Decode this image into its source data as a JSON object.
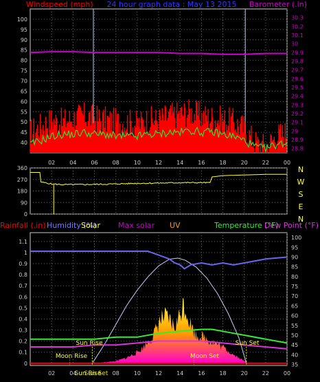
{
  "header": {
    "windspeed_label": "Windspeed (mph)",
    "title": "24 hour graph data : May 13 2015",
    "barometer_label": "Barometer (.in)"
  },
  "bottom_header": {
    "rainfall": "Rainfall (.in)",
    "humidity": "Humidity (%)",
    "solar": "Solar",
    "max_solar": "Max solar",
    "uv": "UV",
    "temperature": "Temperature (°F)",
    "dew_point": "Dew Point (°F)"
  },
  "compass": [
    "N",
    "W",
    "S",
    "E",
    "N"
  ],
  "annotations": {
    "sun_rise": "Sun Rise",
    "sun_set": "Sun Set",
    "moon_rise": "Moon Rise",
    "moon_set": "Moon Set",
    "sun_rise_x": "Sun Rise",
    "sun_set_x": "Sun Set"
  },
  "colors": {
    "wind_gust": "#ff0000",
    "wind_avg": "#33dd33",
    "barometer": "#cc00cc",
    "direction": "#ffff33",
    "humidity": "#6666ee",
    "max_solar": "#ccccff",
    "temperature": "#33ee33",
    "dew_point": "#dd33dd",
    "rainfall": "#ff0000"
  },
  "chart_data": [
    {
      "type": "line",
      "name": "wind-barometer",
      "x_ticks": [
        "02",
        "04",
        "06",
        "08",
        "10",
        "12",
        "14",
        "16",
        "18",
        "20",
        "22",
        "00"
      ],
      "left_ticks": [
        "40",
        "45",
        "50",
        "55",
        "60",
        "65",
        "70",
        "75",
        "80",
        "85",
        "90",
        "95",
        "100"
      ],
      "right_ticks": [
        "28.8",
        "28.9",
        "29",
        "29.1",
        "29.2",
        "29.3",
        "29.4",
        "29.5",
        "29.6",
        "29.7",
        "29.8",
        "29.9",
        "30",
        "30.1",
        "30.2",
        "30.3"
      ],
      "ylim_left": [
        35,
        105
      ],
      "ylim_right": [
        28.75,
        30.4
      ],
      "xlim": [
        0,
        24
      ],
      "vlines_hours": [
        5.9,
        20.1
      ],
      "series": [
        {
          "key": "gust",
          "points": [
            [
              0,
              45
            ],
            [
              1,
              48
            ],
            [
              2,
              51
            ],
            [
              3,
              50
            ],
            [
              4,
              52
            ],
            [
              5,
              53
            ],
            [
              6,
              52
            ],
            [
              7,
              51
            ],
            [
              8,
              50
            ],
            [
              9,
              50
            ],
            [
              10,
              49
            ],
            [
              11,
              51
            ],
            [
              12,
              51
            ],
            [
              13,
              53
            ],
            [
              14,
              54
            ],
            [
              15,
              55
            ],
            [
              16,
              53
            ],
            [
              17,
              52
            ],
            [
              18,
              51
            ],
            [
              19,
              50
            ],
            [
              20,
              47
            ],
            [
              21,
              40
            ],
            [
              22,
              38
            ],
            [
              23,
              43
            ],
            [
              24,
              45
            ]
          ]
        },
        {
          "key": "avg",
          "points": [
            [
              0,
              39
            ],
            [
              1,
              41
            ],
            [
              2,
              43
            ],
            [
              3,
              44
            ],
            [
              4,
              44
            ],
            [
              5,
              45
            ],
            [
              6,
              44
            ],
            [
              7,
              44
            ],
            [
              8,
              43
            ],
            [
              9,
              43
            ],
            [
              10,
              43
            ],
            [
              11,
              44
            ],
            [
              12,
              44
            ],
            [
              13,
              45
            ],
            [
              14,
              45
            ],
            [
              15,
              46
            ],
            [
              16,
              45
            ],
            [
              17,
              45
            ],
            [
              18,
              44
            ],
            [
              19,
              43
            ],
            [
              20,
              41
            ],
            [
              21,
              38
            ],
            [
              22,
              37
            ],
            [
              23,
              39
            ],
            [
              24,
              40
            ]
          ]
        },
        {
          "key": "baro",
          "points": [
            [
              0,
              29.9
            ],
            [
              2,
              29.91
            ],
            [
              4,
              29.91
            ],
            [
              6,
              29.9
            ],
            [
              8,
              29.9
            ],
            [
              10,
              29.9
            ],
            [
              12,
              29.9
            ],
            [
              14,
              29.89
            ],
            [
              16,
              29.89
            ],
            [
              18,
              29.88
            ],
            [
              20,
              29.88
            ],
            [
              22,
              29.89
            ],
            [
              24,
              29.89
            ]
          ]
        }
      ]
    },
    {
      "type": "line",
      "name": "wind-direction",
      "left_ticks": [
        "0",
        "90",
        "180",
        "270",
        "360"
      ],
      "ylim": [
        0,
        360
      ],
      "xlim": [
        0,
        24
      ],
      "series": [
        {
          "key": "dir",
          "points": [
            [
              0,
              325
            ],
            [
              0.9,
              325
            ],
            [
              1,
              250
            ],
            [
              2,
              235
            ],
            [
              3,
              230
            ],
            [
              4,
              230
            ],
            [
              6,
              232
            ],
            [
              8,
              235
            ],
            [
              10,
              240
            ],
            [
              12,
              242
            ],
            [
              14,
              245
            ],
            [
              16,
              245
            ],
            [
              16.8,
              245
            ],
            [
              17,
              290
            ],
            [
              18,
              300
            ],
            [
              20,
              305
            ],
            [
              22,
              310
            ],
            [
              24,
              310
            ]
          ]
        }
      ]
    },
    {
      "type": "line",
      "name": "solar-temperature",
      "left_ticks": [
        "0",
        "0.1",
        "0.2",
        "0.3",
        "0.4",
        "0.5",
        "0.6",
        "0.7",
        "0.8",
        "0.9",
        "1",
        "1.1"
      ],
      "right_ticks": [
        "35",
        "40",
        "45",
        "50",
        "55",
        "60",
        "65",
        "70",
        "75",
        "80",
        "85",
        "90",
        "95",
        "100"
      ],
      "ylim_left": [
        -0.02,
        1.18
      ],
      "ylim_right": [
        34.5,
        102.5
      ],
      "xlim": [
        0,
        24
      ],
      "sunrise_hour": 5.8,
      "sunset_hour": 20.2,
      "moonrise_hour": 3.7,
      "moonset_hour": 15.3,
      "series": [
        {
          "key": "humidity",
          "points": [
            [
              0,
              93
            ],
            [
              2,
              93
            ],
            [
              4,
              93
            ],
            [
              6,
              93
            ],
            [
              8,
              93
            ],
            [
              10,
              93
            ],
            [
              11,
              93
            ],
            [
              12,
              91
            ],
            [
              13,
              89
            ],
            [
              13.5,
              87
            ],
            [
              14,
              86
            ],
            [
              14.4,
              84
            ],
            [
              15,
              86
            ],
            [
              16,
              87
            ],
            [
              17,
              86
            ],
            [
              18,
              87
            ],
            [
              19,
              86
            ],
            [
              20,
              87
            ],
            [
              22,
              89
            ],
            [
              24,
              90
            ]
          ]
        },
        {
          "key": "max_solar",
          "points": [
            [
              5.8,
              0
            ],
            [
              7,
              0.18
            ],
            [
              8,
              0.35
            ],
            [
              9,
              0.52
            ],
            [
              10,
              0.66
            ],
            [
              11,
              0.78
            ],
            [
              12,
              0.88
            ],
            [
              13,
              0.94
            ],
            [
              13.8,
              0.95
            ],
            [
              14.5,
              0.93
            ],
            [
              15.5,
              0.87
            ],
            [
              16.5,
              0.77
            ],
            [
              17.5,
              0.63
            ],
            [
              18.5,
              0.45
            ],
            [
              19.5,
              0.23
            ],
            [
              20.2,
              0
            ]
          ]
        },
        {
          "key": "solar",
          "points": [
            [
              6,
              0
            ],
            [
              8,
              0.02
            ],
            [
              9,
              0.05
            ],
            [
              10,
              0.1
            ],
            [
              10.5,
              0.14
            ],
            [
              11,
              0.2
            ],
            [
              11.5,
              0.25
            ],
            [
              12,
              0.38
            ],
            [
              12.5,
              0.43
            ],
            [
              13,
              0.4
            ],
            [
              13.5,
              0.33
            ],
            [
              14,
              0.45
            ],
            [
              14.3,
              0.55
            ],
            [
              14.6,
              0.48
            ],
            [
              15,
              0.36
            ],
            [
              15.5,
              0.26
            ],
            [
              16,
              0.25
            ],
            [
              17,
              0.2
            ],
            [
              18,
              0.15
            ],
            [
              19,
              0.08
            ],
            [
              20,
              0.02
            ],
            [
              20.5,
              0
            ]
          ]
        },
        {
          "key": "temperature",
          "points": [
            [
              0,
              48
            ],
            [
              2,
              48
            ],
            [
              4,
              48
            ],
            [
              6,
              48
            ],
            [
              8,
              49
            ],
            [
              10,
              49
            ],
            [
              12,
              51
            ],
            [
              14,
              52
            ],
            [
              16,
              53
            ],
            [
              17,
              53
            ],
            [
              18,
              52
            ],
            [
              19,
              51
            ],
            [
              20,
              50
            ],
            [
              22,
              48
            ],
            [
              24,
              46
            ]
          ]
        },
        {
          "key": "dew_point",
          "points": [
            [
              0,
              44
            ],
            [
              2,
              44
            ],
            [
              4,
              44
            ],
            [
              6,
              45
            ],
            [
              8,
              45
            ],
            [
              10,
              46
            ],
            [
              12,
              47
            ],
            [
              14,
              47
            ],
            [
              16,
              47
            ],
            [
              18,
              46
            ],
            [
              20,
              45
            ],
            [
              22,
              44
            ],
            [
              24,
              43
            ]
          ]
        },
        {
          "key": "rainfall",
          "points": [
            [
              0,
              0
            ],
            [
              24,
              0
            ]
          ]
        }
      ]
    }
  ]
}
